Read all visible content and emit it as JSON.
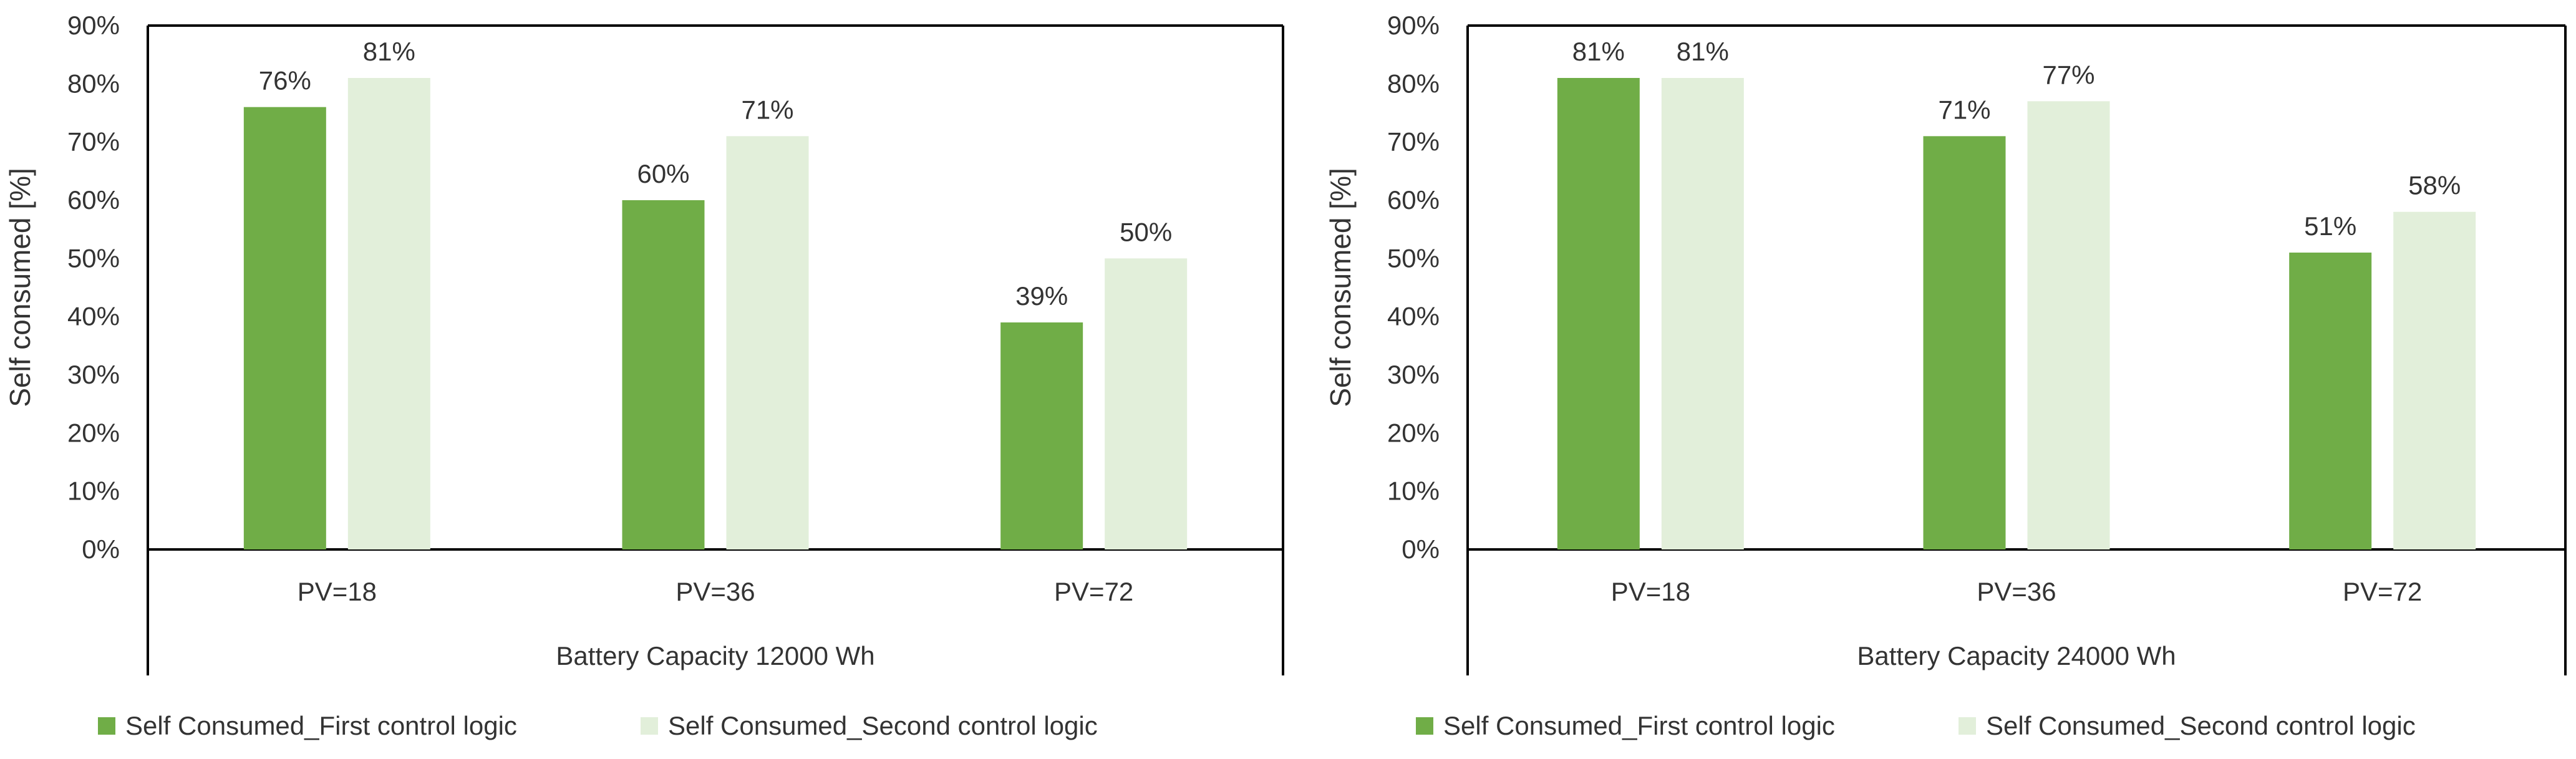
{
  "colors": {
    "first": "#70ad47",
    "second": "#e2efda",
    "axis": "#000000",
    "text": "#333333"
  },
  "chart_data": [
    {
      "type": "bar",
      "ylabel": "Self consumed [%]",
      "xlabel": "Battery Capacity 12000 Wh",
      "categories": [
        "PV=18",
        "PV=36",
        "PV=72"
      ],
      "yticks": [
        "0%",
        "10%",
        "20%",
        "30%",
        "40%",
        "50%",
        "60%",
        "70%",
        "80%",
        "90%"
      ],
      "ylim": [
        0,
        90
      ],
      "series": [
        {
          "name": "Self Consumed_First control logic",
          "values": [
            76,
            60,
            39
          ],
          "labels": [
            "76%",
            "60%",
            "39%"
          ]
        },
        {
          "name": "Self Consumed_Second control logic",
          "values": [
            81,
            71,
            50
          ],
          "labels": [
            "81%",
            "71%",
            "50%"
          ]
        }
      ]
    },
    {
      "type": "bar",
      "ylabel": "Self consumed [%]",
      "xlabel": "Battery Capacity 24000 Wh",
      "categories": [
        "PV=18",
        "PV=36",
        "PV=72"
      ],
      "yticks": [
        "0%",
        "10%",
        "20%",
        "30%",
        "40%",
        "50%",
        "60%",
        "70%",
        "80%",
        "90%"
      ],
      "ylim": [
        0,
        90
      ],
      "series": [
        {
          "name": "Self Consumed_First control logic",
          "values": [
            81,
            71,
            51
          ],
          "labels": [
            "81%",
            "71%",
            "51%"
          ]
        },
        {
          "name": "Self Consumed_Second control logic",
          "values": [
            81,
            77,
            58
          ],
          "labels": [
            "81%",
            "77%",
            "58%"
          ]
        }
      ]
    }
  ]
}
